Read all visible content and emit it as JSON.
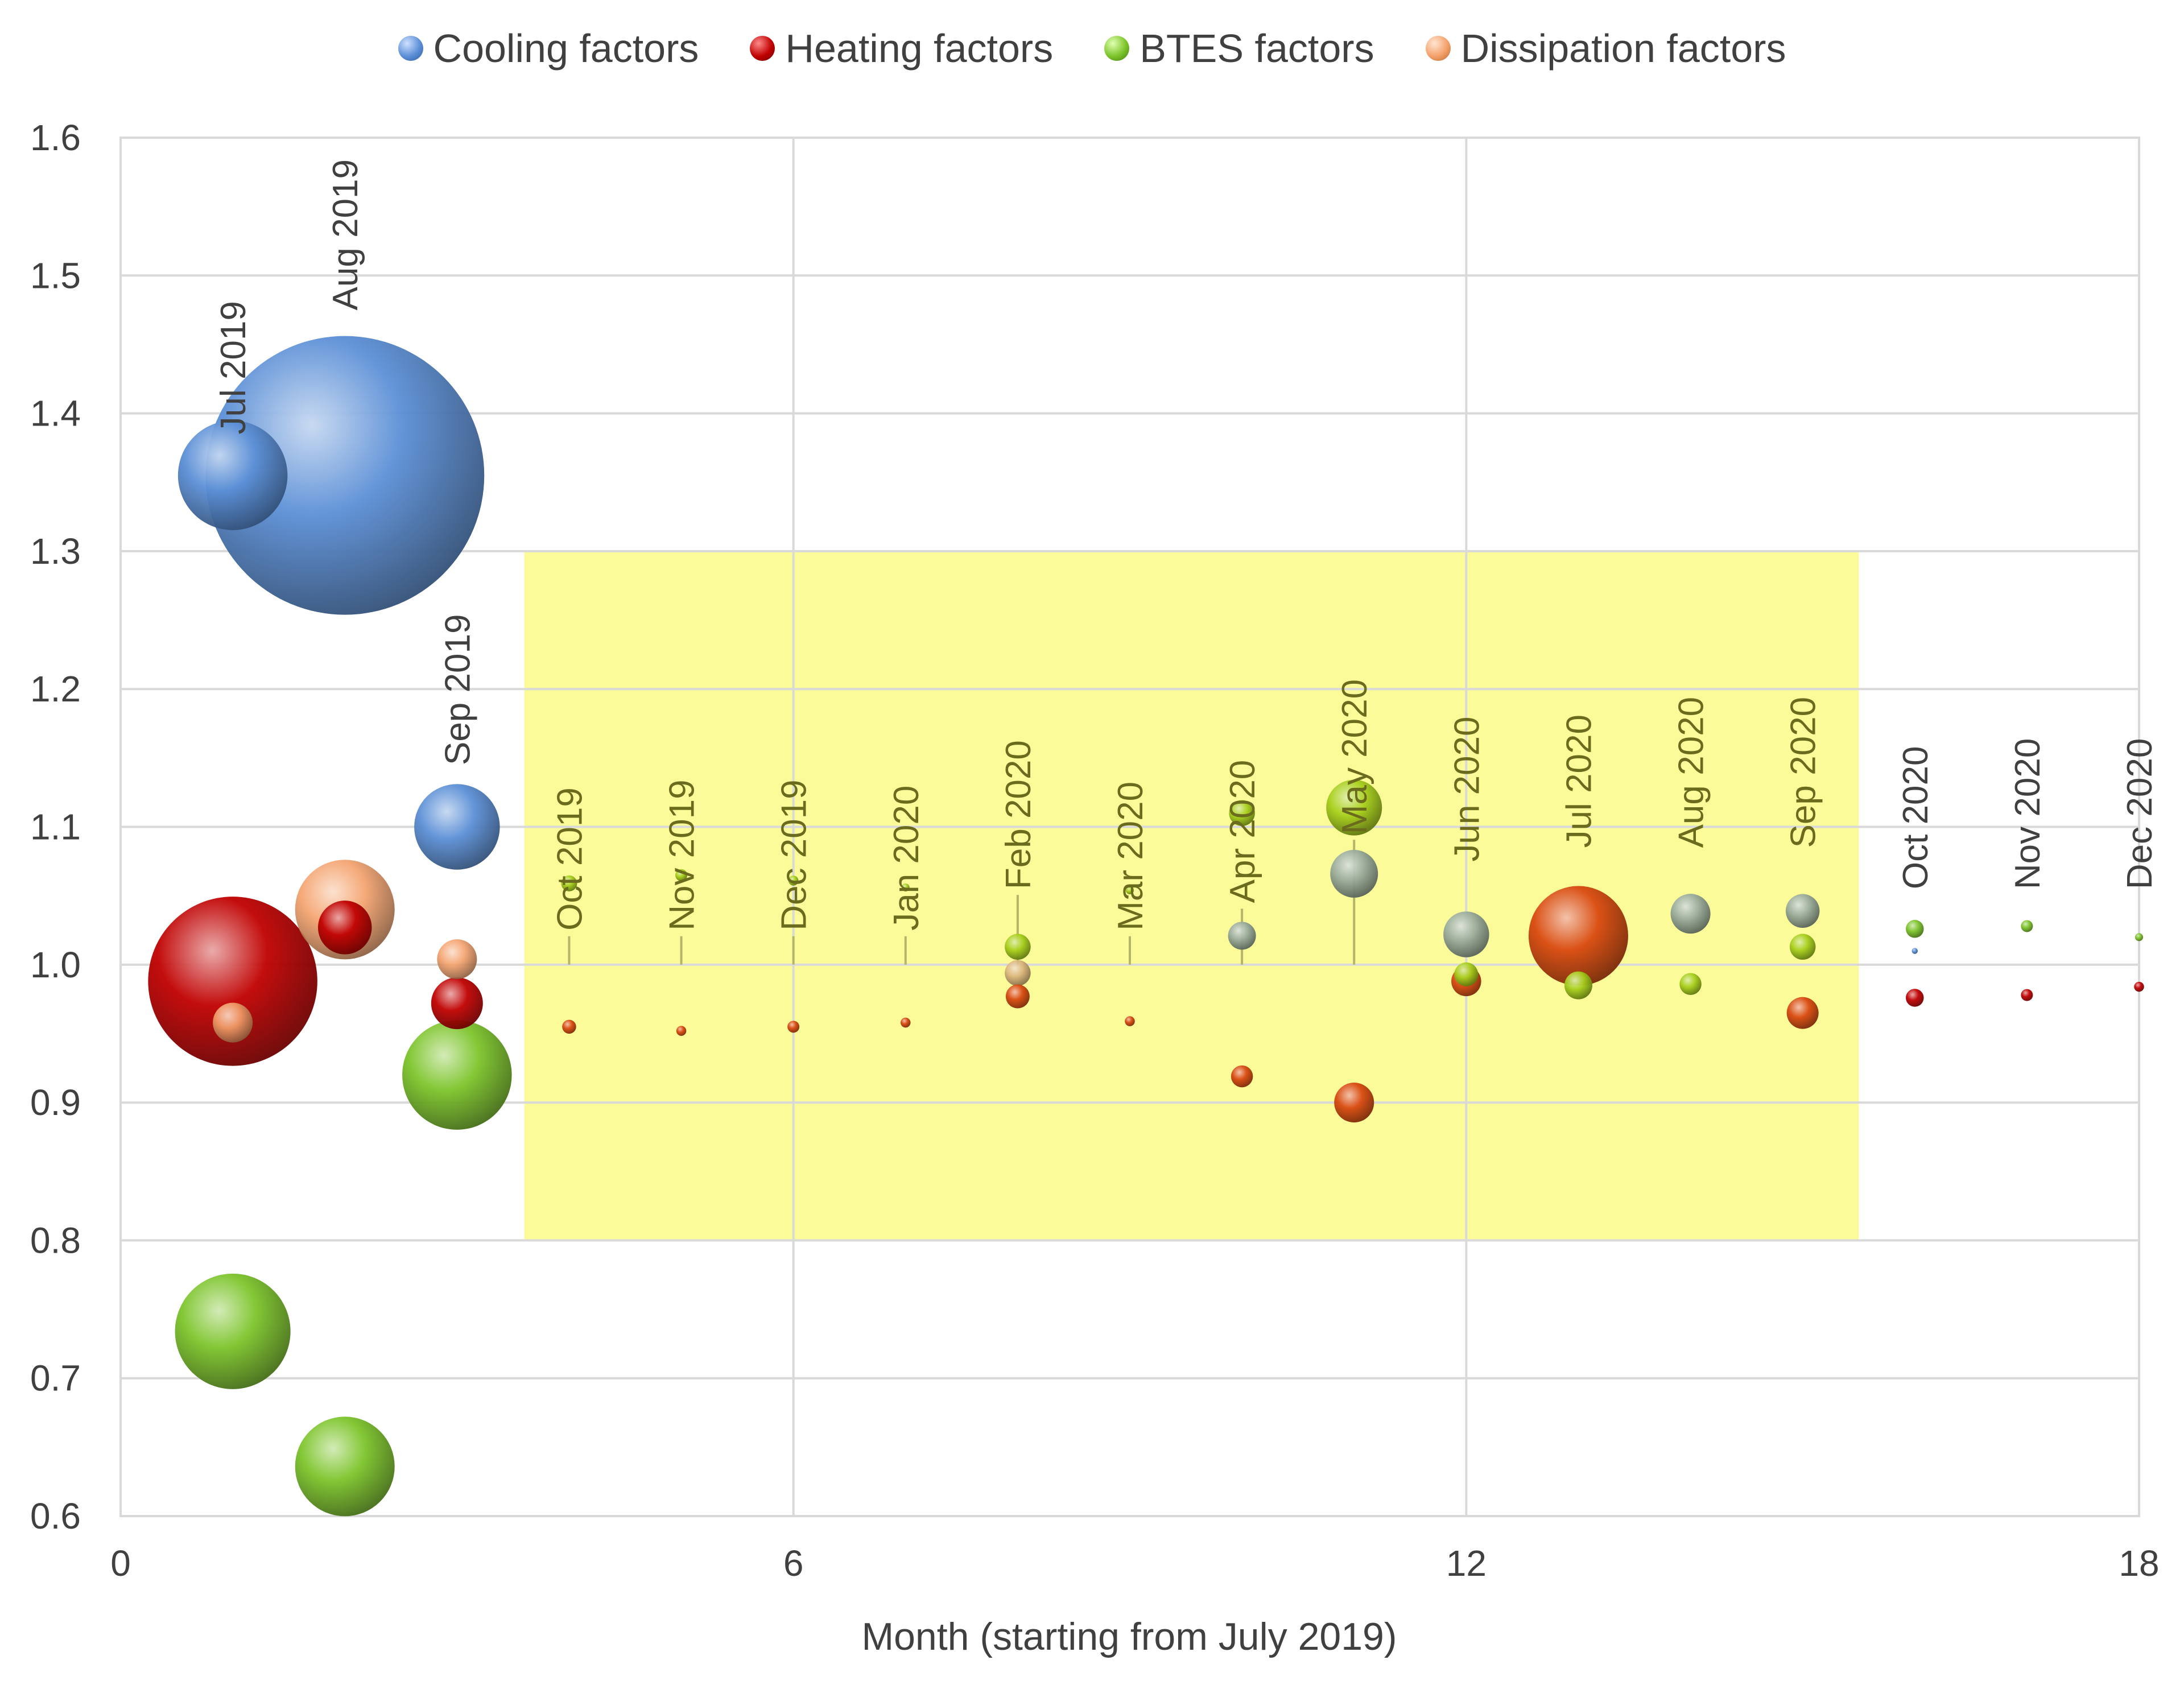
{
  "legend": {
    "cooling": "Cooling factors",
    "heating": "Heating factors",
    "btes": "BTES factors",
    "dissipation": "Dissipation factors"
  },
  "colors": {
    "cooling": "#5b8fd6",
    "heating": "#c00000",
    "btes": "#7cc42a",
    "dissipation": "#f4a06a",
    "heating_highlight": "#d9480f",
    "btes_highlight": "#a7cf1b",
    "cooling_highlight": "#9aac9c",
    "dissipation_highlight": "#d9b27a",
    "highlight_region": "#fbfb9a",
    "grid": "#d9d9d9",
    "axis_text": "#404040"
  },
  "chart_data": {
    "type": "bubble",
    "title": "",
    "xlabel": "Month (starting from July 2019)",
    "ylabel": "",
    "xlim": [
      0,
      18
    ],
    "ylim": [
      0.6,
      1.6
    ],
    "x_ticks": [
      0,
      6,
      12,
      18
    ],
    "y_ticks": [
      0.6,
      0.7,
      0.8,
      0.9,
      1.0,
      1.1,
      1.2,
      1.3,
      1.4,
      1.5,
      1.6
    ],
    "y_tick_labels": [
      "0.6",
      "0.7",
      "0.8",
      "0.9",
      "1.0",
      "1.1",
      "1.2",
      "1.3",
      "1.4",
      "1.5",
      "1.6"
    ],
    "grid": true,
    "legend_position": "top",
    "highlight_region": {
      "x": [
        3.6,
        15.5
      ],
      "y": [
        0.8,
        1.3
      ]
    },
    "month_labels": [
      {
        "x": 1,
        "text": "Jul 2019",
        "anchor_y": 1.36
      },
      {
        "x": 2,
        "text": "Aug 2019",
        "anchor_y": 1.45
      },
      {
        "x": 3,
        "text": "Sep 2019",
        "anchor_y": 1.12
      },
      {
        "x": 4,
        "text": "Oct 2019",
        "anchor_y": 1.0
      },
      {
        "x": 5,
        "text": "Nov 2019",
        "anchor_y": 1.0
      },
      {
        "x": 6,
        "text": "Dec 2019",
        "anchor_y": 1.0
      },
      {
        "x": 7,
        "text": "Jan 2020",
        "anchor_y": 1.0
      },
      {
        "x": 8,
        "text": "Feb 2020",
        "anchor_y": 1.03
      },
      {
        "x": 9,
        "text": "Mar  2020",
        "anchor_y": 1.0
      },
      {
        "x": 10,
        "text": "Apr 2020",
        "anchor_y": 1.02
      },
      {
        "x": 11,
        "text": "May 2020",
        "anchor_y": 1.07
      },
      {
        "x": 12,
        "text": "Jun 2020",
        "anchor_y": 1.05
      },
      {
        "x": 13,
        "text": "Jul 2020",
        "anchor_y": 1.06
      },
      {
        "x": 14,
        "text": "Aug 2020",
        "anchor_y": 1.06
      },
      {
        "x": 15,
        "text": "Sep 2020",
        "anchor_y": 1.06
      },
      {
        "x": 16,
        "text": "Oct 2020",
        "anchor_y": 1.03
      },
      {
        "x": 17,
        "text": "Nov 2020",
        "anchor_y": 1.03
      },
      {
        "x": 18,
        "text": "Dec 2020",
        "anchor_y": 1.03
      }
    ],
    "series": [
      {
        "name": "Dissipation factors",
        "key": "dissipation",
        "points": [
          {
            "x": 1,
            "y": 0.958,
            "size": 0.2
          },
          {
            "x": 2,
            "y": 1.04,
            "size": 0.5
          },
          {
            "x": 3,
            "y": 1.004,
            "size": 0.2
          },
          {
            "x": 8,
            "y": 0.994,
            "size": 0.13
          }
        ]
      },
      {
        "name": "Cooling factors",
        "key": "cooling",
        "points": [
          {
            "x": 1,
            "y": 1.355,
            "size": 0.55
          },
          {
            "x": 2,
            "y": 1.355,
            "size": 1.4
          },
          {
            "x": 3,
            "y": 1.1,
            "size": 0.43
          },
          {
            "x": 10,
            "y": 1.021,
            "size": 0.14
          },
          {
            "x": 11,
            "y": 1.066,
            "size": 0.24
          },
          {
            "x": 12,
            "y": 1.022,
            "size": 0.23
          },
          {
            "x": 14,
            "y": 1.037,
            "size": 0.2
          },
          {
            "x": 15,
            "y": 1.039,
            "size": 0.17
          },
          {
            "x": 16,
            "y": 1.01,
            "size": 0.03
          }
        ]
      },
      {
        "name": "Heating factors",
        "key": "heating",
        "points": [
          {
            "x": 1,
            "y": 0.988,
            "size": 0.85
          },
          {
            "x": 2,
            "y": 1.027,
            "size": 0.27
          },
          {
            "x": 3,
            "y": 0.972,
            "size": 0.26
          },
          {
            "x": 4,
            "y": 0.955,
            "size": 0.07
          },
          {
            "x": 5,
            "y": 0.952,
            "size": 0.05
          },
          {
            "x": 6,
            "y": 0.955,
            "size": 0.06
          },
          {
            "x": 7,
            "y": 0.958,
            "size": 0.05
          },
          {
            "x": 8,
            "y": 0.977,
            "size": 0.12
          },
          {
            "x": 9,
            "y": 0.959,
            "size": 0.05
          },
          {
            "x": 10,
            "y": 0.919,
            "size": 0.11
          },
          {
            "x": 11,
            "y": 0.9,
            "size": 0.2
          },
          {
            "x": 12,
            "y": 0.988,
            "size": 0.15
          },
          {
            "x": 13,
            "y": 1.021,
            "size": 0.5
          },
          {
            "x": 15,
            "y": 0.965,
            "size": 0.16
          },
          {
            "x": 16,
            "y": 0.976,
            "size": 0.09
          },
          {
            "x": 17,
            "y": 0.978,
            "size": 0.06
          },
          {
            "x": 18,
            "y": 0.984,
            "size": 0.05
          }
        ]
      },
      {
        "name": "BTES factors",
        "key": "btes",
        "points": [
          {
            "x": 1,
            "y": 0.734,
            "size": 0.58
          },
          {
            "x": 2,
            "y": 0.636,
            "size": 0.5
          },
          {
            "x": 3,
            "y": 0.92,
            "size": 0.55
          },
          {
            "x": 4,
            "y": 1.059,
            "size": 0.08
          },
          {
            "x": 5,
            "y": 1.065,
            "size": 0.06
          },
          {
            "x": 6,
            "y": 1.061,
            "size": 0.05
          },
          {
            "x": 7,
            "y": 1.056,
            "size": 0.04
          },
          {
            "x": 8,
            "y": 1.013,
            "size": 0.13
          },
          {
            "x": 9,
            "y": 1.054,
            "size": 0.04
          },
          {
            "x": 10,
            "y": 1.11,
            "size": 0.13
          },
          {
            "x": 11,
            "y": 1.114,
            "size": 0.28
          },
          {
            "x": 12,
            "y": 0.993,
            "size": 0.12
          },
          {
            "x": 13,
            "y": 0.985,
            "size": 0.14
          },
          {
            "x": 14,
            "y": 0.986,
            "size": 0.11
          },
          {
            "x": 15,
            "y": 1.013,
            "size": 0.13
          },
          {
            "x": 16,
            "y": 1.026,
            "size": 0.09
          },
          {
            "x": 17,
            "y": 1.028,
            "size": 0.06
          },
          {
            "x": 18,
            "y": 1.02,
            "size": 0.04
          }
        ]
      }
    ]
  }
}
